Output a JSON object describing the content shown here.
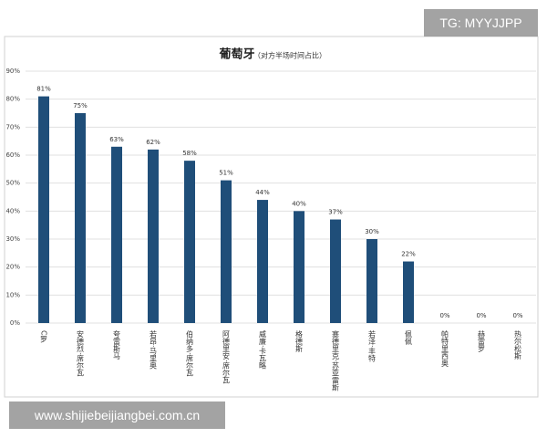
{
  "chart_data": {
    "type": "bar",
    "title": "葡萄牙",
    "subtitle": "（对方半场时间占比）",
    "categories": [
      "C罗",
      "安德烈·席尔瓦",
      "夸雷斯马",
      "若昂·马里奥",
      "伯纳多·席尔瓦",
      "阿德里安·席尔瓦",
      "威廉·卡瓦略",
      "格德斯",
      "塞德里克·苏亚雷斯",
      "若泽·丰特",
      "佩佩",
      "帕特里西奥",
      "赫雷罗",
      "热尔松斯"
    ],
    "values": [
      81,
      75,
      63,
      62,
      58,
      51,
      44,
      40,
      37,
      30,
      22,
      0,
      0,
      0
    ],
    "value_labels": [
      "81%",
      "75%",
      "63%",
      "62%",
      "58%",
      "51%",
      "44%",
      "40%",
      "37%",
      "30%",
      "22%",
      "0%",
      "0%",
      "0%"
    ],
    "color": "#1f4e79",
    "ylim": [
      0,
      90
    ],
    "yticks": [
      {
        "value": 0,
        "label": "0%"
      },
      {
        "value": 10,
        "label": "10%"
      },
      {
        "value": 20,
        "label": "20%"
      },
      {
        "value": 30,
        "label": "30%"
      },
      {
        "value": 40,
        "label": "40%"
      },
      {
        "value": 50,
        "label": "50%"
      },
      {
        "value": 60,
        "label": "60%"
      },
      {
        "value": 70,
        "label": "70%"
      },
      {
        "value": 80,
        "label": "80%"
      },
      {
        "value": 90,
        "label": "90%"
      }
    ],
    "grid": true
  },
  "watermarks": {
    "top": "TG: MYYJJPP",
    "bottom": "www.shijiebeijiangbei.com.cn"
  }
}
